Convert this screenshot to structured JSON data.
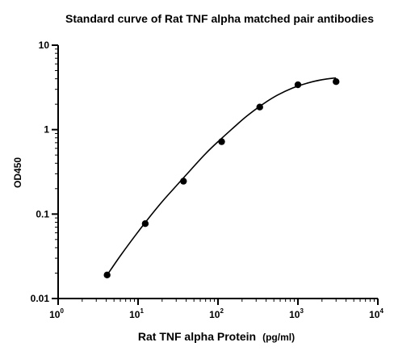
{
  "chart_data": {
    "type": "scatter",
    "title": "Standard curve of Rat TNF alpha matched pair antibodies",
    "xlabel_main": "Rat TNF alpha Protein",
    "xlabel_unit": "(pg/ml)",
    "ylabel": "OD450",
    "x_scale": "log",
    "y_scale": "log",
    "xlim": [
      1,
      10000
    ],
    "ylim": [
      0.01,
      10
    ],
    "x_ticks": [
      {
        "value": 1,
        "base": "10",
        "exp": "0"
      },
      {
        "value": 10,
        "base": "10",
        "exp": "1"
      },
      {
        "value": 100,
        "base": "10",
        "exp": "2"
      },
      {
        "value": 1000,
        "base": "10",
        "exp": "3"
      },
      {
        "value": 10000,
        "base": "10",
        "exp": "4"
      }
    ],
    "y_ticks": [
      {
        "value": 0.01,
        "label": "0.01"
      },
      {
        "value": 0.1,
        "label": "0.1"
      },
      {
        "value": 1,
        "label": "1"
      },
      {
        "value": 10,
        "label": "10"
      }
    ],
    "grid": false,
    "legend": "none",
    "marker_color": "#000000",
    "curve_color": "#000000",
    "points": [
      {
        "x": 4.1,
        "y": 0.019
      },
      {
        "x": 12.3,
        "y": 0.077
      },
      {
        "x": 37,
        "y": 0.245
      },
      {
        "x": 111,
        "y": 0.72
      },
      {
        "x": 333,
        "y": 1.85
      },
      {
        "x": 1000,
        "y": 3.4
      },
      {
        "x": 3000,
        "y": 3.7
      }
    ],
    "fit_curve": [
      {
        "x": 4.1,
        "y": 0.019
      },
      {
        "x": 6,
        "y": 0.032
      },
      {
        "x": 9,
        "y": 0.054
      },
      {
        "x": 13,
        "y": 0.085
      },
      {
        "x": 20,
        "y": 0.14
      },
      {
        "x": 30,
        "y": 0.215
      },
      {
        "x": 45,
        "y": 0.33
      },
      {
        "x": 70,
        "y": 0.52
      },
      {
        "x": 100,
        "y": 0.72
      },
      {
        "x": 150,
        "y": 1.02
      },
      {
        "x": 230,
        "y": 1.45
      },
      {
        "x": 350,
        "y": 1.95
      },
      {
        "x": 550,
        "y": 2.55
      },
      {
        "x": 850,
        "y": 3.1
      },
      {
        "x": 1300,
        "y": 3.55
      },
      {
        "x": 2000,
        "y": 3.9
      },
      {
        "x": 3000,
        "y": 4.1
      }
    ]
  }
}
